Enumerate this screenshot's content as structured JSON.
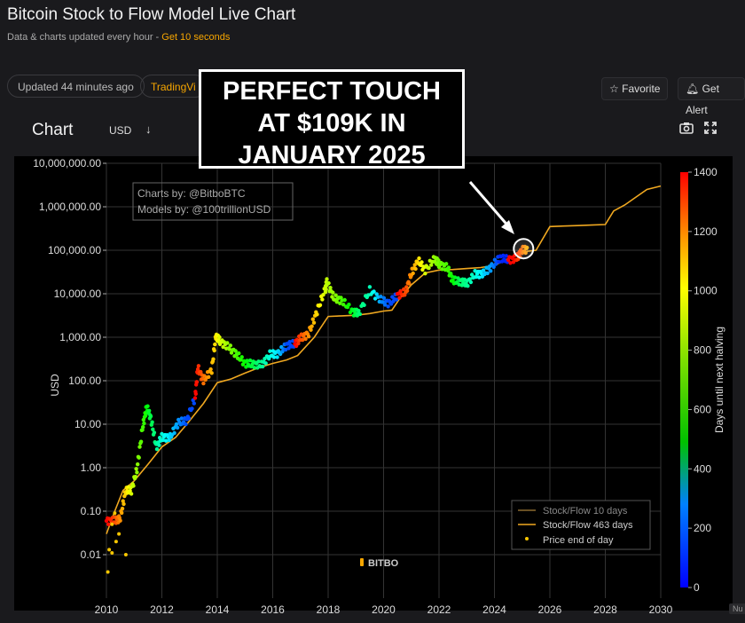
{
  "header": {
    "title": "Bitcoin Stock to Flow Model Live Chart",
    "subtitle_prefix": "Data & charts updated every hour - ",
    "subtitle_accent": "Get 10 seconds"
  },
  "toolbar": {
    "updated": "Updated 44 minutes ago",
    "tradingview": "TradingVi",
    "favorite": "Favorite",
    "get_alert": "Get Alert"
  },
  "chart_header": {
    "label": "Chart",
    "currency": "USD",
    "currency_arrow": "↓"
  },
  "callout": {
    "line1": "PERFECT TOUCH",
    "line2": "AT $109K IN",
    "line3": "JANUARY 2025"
  },
  "colors": {
    "background": "#000000",
    "page": "#1a1a1d",
    "accent": "#f7a600",
    "model_line": "#f0a820",
    "grid": "#3a3a3a"
  },
  "chart_data": {
    "type": "scatter",
    "title": "",
    "xlabel": "",
    "ylabel": "USD",
    "ylog": true,
    "xlim": [
      2010,
      2030
    ],
    "ylim": [
      0.001,
      10000000
    ],
    "y_ticks": [
      "10,000,000.00",
      "1,000,000.00",
      "100,000.00",
      "10,000.00",
      "1,000.00",
      "100.00",
      "10.00",
      "1.00",
      "0.10",
      "0.01"
    ],
    "x_ticks": [
      "2010",
      "2012",
      "2014",
      "2016",
      "2018",
      "2020",
      "2022",
      "2024",
      "2026",
      "2028",
      "2030"
    ],
    "watermark": "BITBO",
    "credits": [
      "Charts by: @BitboBTC",
      "Models by: @100trillionUSD"
    ],
    "legend_position": "bottom-right",
    "legend": [
      "Stock/Flow 10 days",
      "Stock/Flow 463 days",
      "Price end of day"
    ],
    "colorbar": {
      "label": "Days until next halving",
      "min": 0,
      "max": 1400,
      "ticks": [
        "1400",
        "1200",
        "1000",
        "800",
        "600",
        "400",
        "200",
        "0"
      ]
    },
    "grid": true,
    "series": [
      {
        "name": "Stock/Flow 463 days",
        "x": [
          2010.0,
          2010.3,
          2010.6,
          2011.0,
          2011.5,
          2012.0,
          2012.5,
          2012.9,
          2013.5,
          2014.0,
          2014.5,
          2015.0,
          2015.5,
          2016.0,
          2016.5,
          2016.9,
          2017.5,
          2018.0,
          2018.5,
          2019.0,
          2019.5,
          2020.0,
          2020.3,
          2020.6,
          2021.0,
          2021.5,
          2022.0,
          2022.5,
          2023.0,
          2023.5,
          2024.0,
          2024.3,
          2024.6,
          2025.0,
          2025.2,
          2025.5,
          2026.0,
          2026.5,
          2027.0,
          2027.5,
          2028.0,
          2028.3,
          2028.7,
          2029.0,
          2029.5,
          2030.0
        ],
        "y": [
          0.03,
          0.1,
          0.3,
          0.5,
          1.2,
          3,
          5,
          10,
          30,
          90,
          110,
          150,
          200,
          250,
          300,
          380,
          1000,
          3000,
          3100,
          3200,
          3500,
          4000,
          4200,
          8000,
          16000,
          30000,
          35000,
          36000,
          38000,
          40000,
          45000,
          55000,
          70000,
          85000,
          95000,
          100000,
          350000,
          360000,
          370000,
          380000,
          390000,
          800000,
          1100000,
          1500000,
          2500000,
          3000000
        ]
      },
      {
        "name": "Price end of day",
        "x": [
          2010.0,
          2010.3,
          2010.5,
          2010.7,
          2010.9,
          2011.1,
          2011.3,
          2011.45,
          2011.6,
          2011.8,
          2012.0,
          2012.3,
          2012.6,
          2012.9,
          2013.2,
          2013.3,
          2013.5,
          2013.8,
          2013.95,
          2014.1,
          2014.4,
          2014.7,
          2015.0,
          2015.3,
          2015.6,
          2015.9,
          2016.2,
          2016.5,
          2016.8,
          2017.0,
          2017.3,
          2017.6,
          2017.9,
          2017.96,
          2018.2,
          2018.5,
          2018.9,
          2019.1,
          2019.5,
          2019.9,
          2020.2,
          2020.5,
          2020.8,
          2021.0,
          2021.25,
          2021.5,
          2021.85,
          2022.0,
          2022.3,
          2022.5,
          2022.8,
          2023.0,
          2023.3,
          2023.6,
          2023.9,
          2024.2,
          2024.5,
          2024.8,
          2025.0,
          2025.2
        ],
        "y": [
          0.06,
          0.06,
          0.07,
          0.3,
          0.3,
          0.9,
          8,
          25,
          14,
          3,
          5,
          5,
          11,
          12,
          40,
          200,
          100,
          180,
          1100,
          800,
          600,
          400,
          250,
          240,
          230,
          400,
          420,
          650,
          700,
          950,
          1200,
          4000,
          13000,
          19000,
          8000,
          7000,
          3800,
          3500,
          12000,
          7200,
          6000,
          9200,
          11000,
          29000,
          58000,
          35000,
          65000,
          47000,
          40000,
          20000,
          19000,
          17000,
          28000,
          29000,
          42000,
          68000,
          60000,
          65000,
          100000,
          105000
        ],
        "days_to_halving": [
          1400,
          1300,
          1200,
          1100,
          1000,
          900,
          800,
          700,
          600,
          500,
          400,
          300,
          200,
          100,
          1400,
          1350,
          1250,
          1150,
          1080,
          1000,
          900,
          800,
          700,
          600,
          500,
          400,
          300,
          100,
          1400,
          1300,
          1200,
          1100,
          980,
          960,
          900,
          800,
          650,
          550,
          450,
          200,
          100,
          1400,
          1300,
          1200,
          1100,
          1000,
          900,
          850,
          800,
          700,
          550,
          500,
          400,
          300,
          200,
          50,
          1450,
          1350,
          1250,
          1150
        ]
      }
    ]
  }
}
